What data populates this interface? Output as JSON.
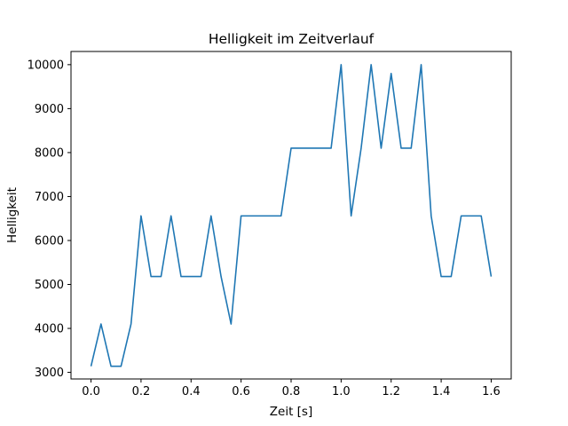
{
  "chart_data": {
    "type": "line",
    "title": "Helligkeit im Zeitverlauf",
    "xlabel": "Zeit [s]",
    "ylabel": "Helligkeit",
    "xlim": [
      -0.08,
      1.68
    ],
    "ylim": [
      2850,
      10300
    ],
    "xticks": [
      0.0,
      0.2,
      0.4,
      0.6,
      0.8,
      1.0,
      1.2,
      1.4,
      1.6
    ],
    "xtick_labels": [
      "0.0",
      "0.2",
      "0.4",
      "0.6",
      "0.8",
      "1.0",
      "1.2",
      "1.4",
      "1.6"
    ],
    "yticks": [
      3000,
      4000,
      5000,
      6000,
      7000,
      8000,
      9000,
      10000
    ],
    "ytick_labels": [
      "3000",
      "4000",
      "5000",
      "6000",
      "7000",
      "8000",
      "9000",
      "10000"
    ],
    "grid": false,
    "series": [
      {
        "color": "#1f77b4",
        "x": [
          0.0,
          0.04,
          0.08,
          0.12,
          0.16,
          0.2,
          0.24,
          0.28,
          0.32,
          0.36,
          0.4,
          0.44,
          0.48,
          0.52,
          0.56,
          0.6,
          0.64,
          0.68,
          0.72,
          0.76,
          0.8,
          0.84,
          0.88,
          0.92,
          0.96,
          1.0,
          1.04,
          1.08,
          1.12,
          1.16,
          1.2,
          1.24,
          1.28,
          1.32,
          1.36,
          1.4,
          1.44,
          1.48,
          1.52,
          1.56,
          1.6
        ],
        "y": [
          3140,
          4100,
          3140,
          3140,
          4100,
          6560,
          5180,
          5180,
          6560,
          5180,
          5180,
          5180,
          6560,
          5180,
          4100,
          6560,
          6560,
          6560,
          6560,
          6560,
          8100,
          8100,
          8100,
          8100,
          8100,
          10000,
          6560,
          8100,
          10000,
          8100,
          9800,
          8100,
          8100,
          10000,
          6560,
          5180,
          5180,
          6560,
          6560,
          6560,
          5180
        ]
      }
    ]
  }
}
